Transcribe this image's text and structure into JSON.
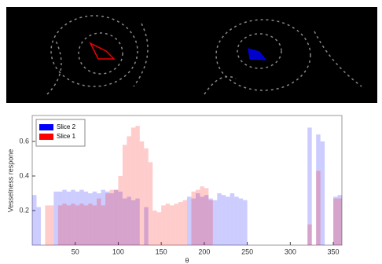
{
  "chart_data": {
    "type": "bar",
    "x": [
      0,
      5,
      10,
      15,
      20,
      25,
      30,
      35,
      40,
      45,
      50,
      55,
      60,
      65,
      70,
      75,
      80,
      85,
      90,
      95,
      100,
      105,
      110,
      115,
      120,
      125,
      130,
      135,
      140,
      145,
      150,
      155,
      160,
      165,
      170,
      175,
      180,
      185,
      190,
      195,
      200,
      205,
      210,
      215,
      220,
      225,
      230,
      235,
      240,
      245,
      250,
      255,
      260,
      265,
      270,
      275,
      280,
      285,
      290,
      295,
      300,
      305,
      310,
      315,
      320,
      325,
      330,
      335,
      340,
      345,
      350,
      355
    ],
    "bar_width": 5,
    "xlabel": "θ",
    "ylabel": "Vesselness respone",
    "xlim": [
      0,
      360
    ],
    "xticks": [
      50,
      100,
      150,
      200,
      250,
      300,
      350
    ],
    "ylim": [
      0,
      0.75
    ],
    "yticks": [
      0.2,
      0.4,
      0.6
    ],
    "legend": "top-left",
    "series": [
      {
        "name": "Slice 2",
        "color": "#0000ff",
        "values": [
          0.29,
          0.22,
          null,
          null,
          null,
          0.31,
          0.31,
          0.32,
          0.31,
          0.32,
          0.31,
          0.32,
          0.31,
          0.3,
          0.31,
          0.3,
          0.32,
          0.31,
          0.3,
          0.32,
          0.31,
          0.27,
          0.28,
          0.26,
          0.27,
          null,
          0.22,
          null,
          null,
          null,
          null,
          null,
          null,
          null,
          null,
          null,
          0.28,
          0.27,
          0.3,
          0.28,
          0.29,
          0.27,
          0.26,
          0.3,
          0.29,
          0.28,
          0.3,
          0.28,
          0.27,
          0.26,
          null,
          null,
          null,
          null,
          null,
          null,
          null,
          null,
          null,
          null,
          null,
          null,
          null,
          null,
          0.68,
          null,
          0.64,
          0.6,
          null,
          null,
          0.28,
          0.29
        ]
      },
      {
        "name": "Slice 1",
        "color": "#ff0000",
        "values": [
          null,
          null,
          null,
          0.23,
          0.23,
          null,
          0.23,
          0.24,
          0.23,
          0.24,
          0.23,
          0.24,
          0.23,
          0.24,
          0.23,
          0.27,
          0.23,
          0.3,
          0.32,
          0.32,
          0.4,
          0.58,
          0.63,
          0.68,
          0.69,
          0.6,
          0.56,
          0.48,
          0.2,
          0.19,
          0.23,
          0.24,
          0.23,
          0.24,
          0.25,
          0.26,
          null,
          0.31,
          0.32,
          0.34,
          0.33,
          0.26,
          null,
          null,
          null,
          null,
          null,
          null,
          null,
          null,
          null,
          null,
          null,
          null,
          null,
          null,
          null,
          null,
          null,
          null,
          null,
          null,
          null,
          null,
          0.12,
          null,
          0.43,
          null,
          null,
          null,
          0.27,
          0.27
        ]
      }
    ]
  }
}
